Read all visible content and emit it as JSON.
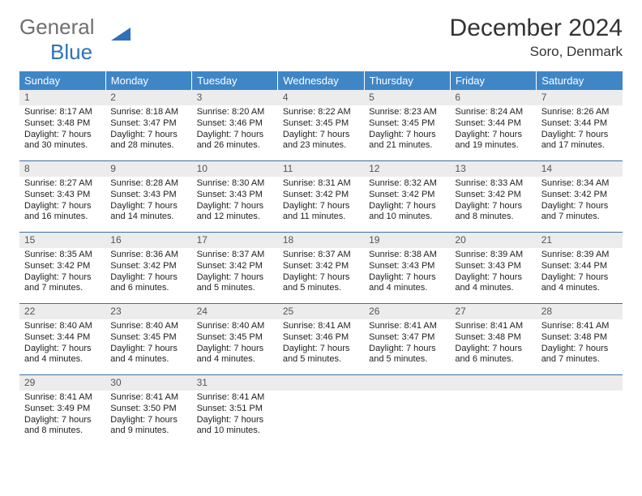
{
  "logo": {
    "part1": "General",
    "part2": "Blue",
    "triangle_color": "#2f71b8"
  },
  "header": {
    "title": "December 2024",
    "location": "Soro, Denmark"
  },
  "colors": {
    "header_bg": "#3f86c7",
    "daynum_bg": "#ececec",
    "rule": "#3f6fa5"
  },
  "weekdays": [
    "Sunday",
    "Monday",
    "Tuesday",
    "Wednesday",
    "Thursday",
    "Friday",
    "Saturday"
  ],
  "days": [
    {
      "n": "1",
      "sr": "8:17 AM",
      "ss": "3:48 PM",
      "dl": "7 hours and 30 minutes."
    },
    {
      "n": "2",
      "sr": "8:18 AM",
      "ss": "3:47 PM",
      "dl": "7 hours and 28 minutes."
    },
    {
      "n": "3",
      "sr": "8:20 AM",
      "ss": "3:46 PM",
      "dl": "7 hours and 26 minutes."
    },
    {
      "n": "4",
      "sr": "8:22 AM",
      "ss": "3:45 PM",
      "dl": "7 hours and 23 minutes."
    },
    {
      "n": "5",
      "sr": "8:23 AM",
      "ss": "3:45 PM",
      "dl": "7 hours and 21 minutes."
    },
    {
      "n": "6",
      "sr": "8:24 AM",
      "ss": "3:44 PM",
      "dl": "7 hours and 19 minutes."
    },
    {
      "n": "7",
      "sr": "8:26 AM",
      "ss": "3:44 PM",
      "dl": "7 hours and 17 minutes."
    },
    {
      "n": "8",
      "sr": "8:27 AM",
      "ss": "3:43 PM",
      "dl": "7 hours and 16 minutes."
    },
    {
      "n": "9",
      "sr": "8:28 AM",
      "ss": "3:43 PM",
      "dl": "7 hours and 14 minutes."
    },
    {
      "n": "10",
      "sr": "8:30 AM",
      "ss": "3:43 PM",
      "dl": "7 hours and 12 minutes."
    },
    {
      "n": "11",
      "sr": "8:31 AM",
      "ss": "3:42 PM",
      "dl": "7 hours and 11 minutes."
    },
    {
      "n": "12",
      "sr": "8:32 AM",
      "ss": "3:42 PM",
      "dl": "7 hours and 10 minutes."
    },
    {
      "n": "13",
      "sr": "8:33 AM",
      "ss": "3:42 PM",
      "dl": "7 hours and 8 minutes."
    },
    {
      "n": "14",
      "sr": "8:34 AM",
      "ss": "3:42 PM",
      "dl": "7 hours and 7 minutes."
    },
    {
      "n": "15",
      "sr": "8:35 AM",
      "ss": "3:42 PM",
      "dl": "7 hours and 7 minutes."
    },
    {
      "n": "16",
      "sr": "8:36 AM",
      "ss": "3:42 PM",
      "dl": "7 hours and 6 minutes."
    },
    {
      "n": "17",
      "sr": "8:37 AM",
      "ss": "3:42 PM",
      "dl": "7 hours and 5 minutes."
    },
    {
      "n": "18",
      "sr": "8:37 AM",
      "ss": "3:42 PM",
      "dl": "7 hours and 5 minutes."
    },
    {
      "n": "19",
      "sr": "8:38 AM",
      "ss": "3:43 PM",
      "dl": "7 hours and 4 minutes."
    },
    {
      "n": "20",
      "sr": "8:39 AM",
      "ss": "3:43 PM",
      "dl": "7 hours and 4 minutes."
    },
    {
      "n": "21",
      "sr": "8:39 AM",
      "ss": "3:44 PM",
      "dl": "7 hours and 4 minutes."
    },
    {
      "n": "22",
      "sr": "8:40 AM",
      "ss": "3:44 PM",
      "dl": "7 hours and 4 minutes."
    },
    {
      "n": "23",
      "sr": "8:40 AM",
      "ss": "3:45 PM",
      "dl": "7 hours and 4 minutes."
    },
    {
      "n": "24",
      "sr": "8:40 AM",
      "ss": "3:45 PM",
      "dl": "7 hours and 4 minutes."
    },
    {
      "n": "25",
      "sr": "8:41 AM",
      "ss": "3:46 PM",
      "dl": "7 hours and 5 minutes."
    },
    {
      "n": "26",
      "sr": "8:41 AM",
      "ss": "3:47 PM",
      "dl": "7 hours and 5 minutes."
    },
    {
      "n": "27",
      "sr": "8:41 AM",
      "ss": "3:48 PM",
      "dl": "7 hours and 6 minutes."
    },
    {
      "n": "28",
      "sr": "8:41 AM",
      "ss": "3:48 PM",
      "dl": "7 hours and 7 minutes."
    },
    {
      "n": "29",
      "sr": "8:41 AM",
      "ss": "3:49 PM",
      "dl": "7 hours and 8 minutes."
    },
    {
      "n": "30",
      "sr": "8:41 AM",
      "ss": "3:50 PM",
      "dl": "7 hours and 9 minutes."
    },
    {
      "n": "31",
      "sr": "8:41 AM",
      "ss": "3:51 PM",
      "dl": "7 hours and 10 minutes."
    }
  ],
  "labels": {
    "sunrise": "Sunrise: ",
    "sunset": "Sunset: ",
    "daylight": "Daylight: "
  }
}
